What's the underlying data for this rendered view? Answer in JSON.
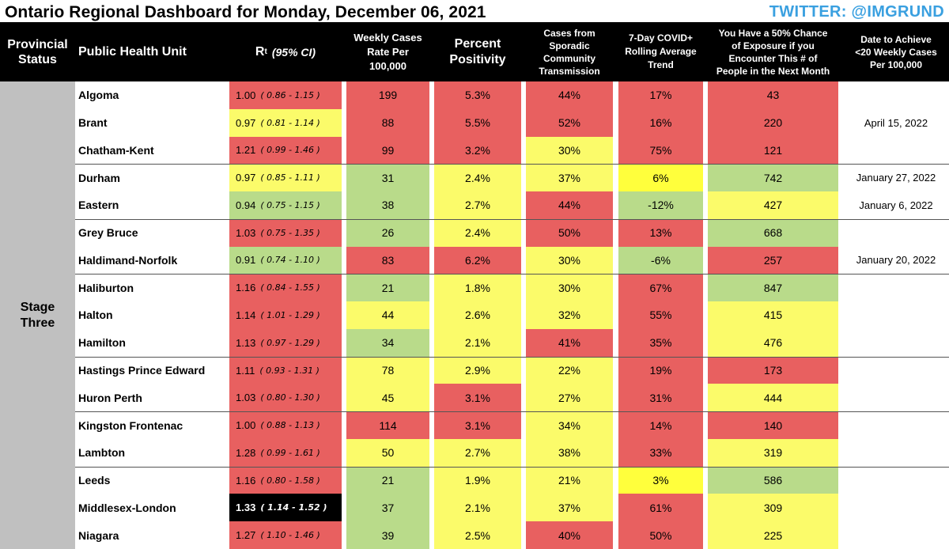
{
  "title": "Ontario Regional Dashboard for Monday, December 06, 2021",
  "twitter": "TWITTER: @IMGRUND",
  "headers": {
    "status_l1": "Provincial",
    "status_l2": "Status",
    "unit": "Public Health Unit",
    "rt_main": "R",
    "rt_sub": "t",
    "rt_ci": "(95% CI)",
    "weekly_l1": "Weekly Cases",
    "weekly_l2": "Rate Per",
    "weekly_l3": "100,000",
    "pos_l1": "Percent",
    "pos_l2": "Positivity",
    "spor_l1": "Cases from",
    "spor_l2": "Sporadic",
    "spor_l3": "Community",
    "spor_l4": "Transmission",
    "trend_l1": "7-Day COVID+",
    "trend_l2": "Rolling Average",
    "trend_l3": "Trend",
    "exp_l1": "You Have a 50% Chance",
    "exp_l2": "of Exposure if you",
    "exp_l3": "Encounter This # of",
    "exp_l4": "People in the Next Month",
    "date_l1": "Date to Achieve",
    "date_l2": "<20 Weekly Cases",
    "date_l3": "Per 100,000"
  },
  "status": {
    "l1": "Stage",
    "l2": "Three"
  },
  "colors": {
    "red": "#e86060",
    "yellow": "#fbfb6a",
    "green": "#b9db8a",
    "bright_yellow": "#ffff3c",
    "twitter": "#3aa0e0"
  },
  "rows": [
    {
      "unit": "Algoma",
      "rt": "1.00",
      "ci": "( 0.86 - 1.15 )",
      "rt_c": "red",
      "weekly": "199",
      "wk_c": "red",
      "pos": "5.3%",
      "pp_c": "red",
      "spor": "44%",
      "sp_c": "red",
      "trend": "17%",
      "tr_c": "red",
      "exp": "43",
      "ex_c": "red",
      "date": ""
    },
    {
      "unit": "Brant",
      "rt": "0.97",
      "ci": "( 0.81 - 1.14 )",
      "rt_c": "yellow",
      "weekly": "88",
      "wk_c": "red",
      "pos": "5.5%",
      "pp_c": "red",
      "spor": "52%",
      "sp_c": "red",
      "trend": "16%",
      "tr_c": "red",
      "exp": "220",
      "ex_c": "red",
      "date": "April 15, 2022"
    },
    {
      "unit": "Chatham-Kent",
      "rt": "1.21",
      "ci": "( 0.99 - 1.46 )",
      "rt_c": "red",
      "weekly": "99",
      "wk_c": "red",
      "pos": "3.2%",
      "pp_c": "red",
      "spor": "30%",
      "sp_c": "yellow",
      "trend": "75%",
      "tr_c": "red",
      "exp": "121",
      "ex_c": "red",
      "date": ""
    },
    {
      "unit": "Durham",
      "rt": "0.97",
      "ci": "( 0.85 - 1.11 )",
      "rt_c": "yellow",
      "weekly": "31",
      "wk_c": "green",
      "pos": "2.4%",
      "pp_c": "yellow",
      "spor": "37%",
      "sp_c": "yellow",
      "trend": "6%",
      "tr_c": "bright-yellow",
      "exp": "742",
      "ex_c": "green",
      "date": "January 27, 2022"
    },
    {
      "unit": "Eastern",
      "rt": "0.94",
      "ci": "( 0.75 - 1.15 )",
      "rt_c": "green",
      "weekly": "38",
      "wk_c": "green",
      "pos": "2.7%",
      "pp_c": "yellow",
      "spor": "44%",
      "sp_c": "red",
      "trend": "-12%",
      "tr_c": "green",
      "exp": "427",
      "ex_c": "yellow",
      "date": "January 6, 2022"
    },
    {
      "unit": "Grey Bruce",
      "rt": "1.03",
      "ci": "( 0.75 - 1.35 )",
      "rt_c": "red",
      "weekly": "26",
      "wk_c": "green",
      "pos": "2.4%",
      "pp_c": "yellow",
      "spor": "50%",
      "sp_c": "red",
      "trend": "13%",
      "tr_c": "red",
      "exp": "668",
      "ex_c": "green",
      "date": ""
    },
    {
      "unit": "Haldimand-Norfolk",
      "rt": "0.91",
      "ci": "( 0.74 - 1.10 )",
      "rt_c": "green",
      "weekly": "83",
      "wk_c": "red",
      "pos": "6.2%",
      "pp_c": "red",
      "spor": "30%",
      "sp_c": "yellow",
      "trend": "-6%",
      "tr_c": "green",
      "exp": "257",
      "ex_c": "red",
      "date": "January 20, 2022"
    },
    {
      "unit": "Haliburton",
      "rt": "1.16",
      "ci": "( 0.84 - 1.55 )",
      "rt_c": "red",
      "weekly": "21",
      "wk_c": "green",
      "pos": "1.8%",
      "pp_c": "yellow",
      "spor": "30%",
      "sp_c": "yellow",
      "trend": "67%",
      "tr_c": "red",
      "exp": "847",
      "ex_c": "green",
      "date": ""
    },
    {
      "unit": "Halton",
      "rt": "1.14",
      "ci": "( 1.01 - 1.29 )",
      "rt_c": "red",
      "weekly": "44",
      "wk_c": "yellow",
      "pos": "2.6%",
      "pp_c": "yellow",
      "spor": "32%",
      "sp_c": "yellow",
      "trend": "55%",
      "tr_c": "red",
      "exp": "415",
      "ex_c": "yellow",
      "date": ""
    },
    {
      "unit": "Hamilton",
      "rt": "1.13",
      "ci": "( 0.97 - 1.29 )",
      "rt_c": "red",
      "weekly": "34",
      "wk_c": "green",
      "pos": "2.1%",
      "pp_c": "yellow",
      "spor": "41%",
      "sp_c": "red",
      "trend": "35%",
      "tr_c": "red",
      "exp": "476",
      "ex_c": "yellow",
      "date": ""
    },
    {
      "unit": "Hastings Prince Edward",
      "rt": "1.11",
      "ci": "( 0.93 - 1.31 )",
      "rt_c": "red",
      "weekly": "78",
      "wk_c": "yellow",
      "pos": "2.9%",
      "pp_c": "yellow",
      "spor": "22%",
      "sp_c": "yellow",
      "trend": "19%",
      "tr_c": "red",
      "exp": "173",
      "ex_c": "red",
      "date": ""
    },
    {
      "unit": "Huron Perth",
      "rt": "1.03",
      "ci": "( 0.80 - 1.30 )",
      "rt_c": "red",
      "weekly": "45",
      "wk_c": "yellow",
      "pos": "3.1%",
      "pp_c": "red",
      "spor": "27%",
      "sp_c": "yellow",
      "trend": "31%",
      "tr_c": "red",
      "exp": "444",
      "ex_c": "yellow",
      "date": ""
    },
    {
      "unit": "Kingston Frontenac",
      "rt": "1.00",
      "ci": "( 0.88 - 1.13 )",
      "rt_c": "red",
      "weekly": "114",
      "wk_c": "red",
      "pos": "3.1%",
      "pp_c": "red",
      "spor": "34%",
      "sp_c": "yellow",
      "trend": "14%",
      "tr_c": "red",
      "exp": "140",
      "ex_c": "red",
      "date": ""
    },
    {
      "unit": "Lambton",
      "rt": "1.28",
      "ci": "( 0.99 - 1.61 )",
      "rt_c": "red",
      "weekly": "50",
      "wk_c": "yellow",
      "pos": "2.7%",
      "pp_c": "yellow",
      "spor": "38%",
      "sp_c": "yellow",
      "trend": "33%",
      "tr_c": "red",
      "exp": "319",
      "ex_c": "yellow",
      "date": ""
    },
    {
      "unit": "Leeds",
      "rt": "1.16",
      "ci": "( 0.80 - 1.58 )",
      "rt_c": "red",
      "weekly": "21",
      "wk_c": "green",
      "pos": "1.9%",
      "pp_c": "yellow",
      "spor": "21%",
      "sp_c": "yellow",
      "trend": "3%",
      "tr_c": "bright-yellow",
      "exp": "586",
      "ex_c": "green",
      "date": ""
    },
    {
      "unit": "Middlesex-London",
      "rt": "1.33",
      "ci": "( 1.14 - 1.52 )",
      "rt_c": "dark",
      "weekly": "37",
      "wk_c": "green",
      "pos": "2.1%",
      "pp_c": "yellow",
      "spor": "37%",
      "sp_c": "yellow",
      "trend": "61%",
      "tr_c": "red",
      "exp": "309",
      "ex_c": "yellow",
      "date": ""
    },
    {
      "unit": "Niagara",
      "rt": "1.27",
      "ci": "( 1.10 - 1.46 )",
      "rt_c": "red",
      "weekly": "39",
      "wk_c": "green",
      "pos": "2.5%",
      "pp_c": "yellow",
      "spor": "40%",
      "sp_c": "red",
      "trend": "50%",
      "tr_c": "red",
      "exp": "225",
      "ex_c": "yellow",
      "date": ""
    }
  ]
}
